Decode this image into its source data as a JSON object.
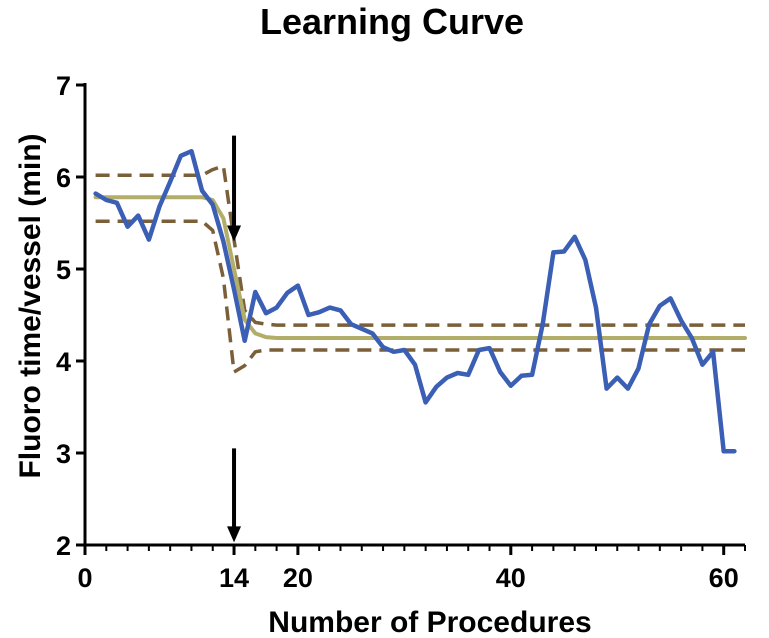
{
  "chart_data": {
    "type": "line",
    "title": "Learning Curve",
    "xlabel": "Number of  Procedures",
    "ylabel": "Fluoro time/vessel (min)",
    "xlim": [
      0,
      62
    ],
    "ylim": [
      2,
      7
    ],
    "x_ticks": [
      {
        "value": 0,
        "label": "0"
      },
      {
        "value": 14,
        "label": "14"
      },
      {
        "value": 20,
        "label": "20"
      },
      {
        "value": 40,
        "label": "40"
      },
      {
        "value": 60,
        "label": "60"
      }
    ],
    "x_minor_ticks": [
      2,
      4,
      6,
      8,
      10,
      12,
      16,
      18,
      22,
      24,
      26,
      28,
      30,
      32,
      34,
      36,
      38,
      42,
      44,
      46,
      48,
      50,
      52,
      54,
      56,
      58,
      62
    ],
    "y_ticks": [
      {
        "value": 2,
        "label": "2"
      },
      {
        "value": 3,
        "label": "3"
      },
      {
        "value": 4,
        "label": "4"
      },
      {
        "value": 5,
        "label": "5"
      },
      {
        "value": 6,
        "label": "6"
      },
      {
        "value": 7,
        "label": "7"
      }
    ],
    "breakpoint_x": 14,
    "series": [
      {
        "role": "observed",
        "color": "#3b5fb5",
        "x": [
          1,
          2,
          3,
          4,
          5,
          6,
          7,
          8,
          9,
          10,
          11,
          12,
          13,
          14,
          15,
          16,
          17,
          18,
          19,
          20,
          21,
          22,
          23,
          24,
          25,
          26,
          27,
          28,
          29,
          30,
          31,
          32,
          33,
          34,
          35,
          36,
          37,
          38,
          39,
          40,
          41,
          42,
          43,
          44,
          45,
          46,
          47,
          48,
          49,
          50,
          51,
          52,
          53,
          54,
          55,
          56,
          57,
          58,
          59,
          60,
          61
        ],
        "values": [
          5.82,
          5.75,
          5.72,
          5.46,
          5.58,
          5.32,
          5.68,
          5.95,
          6.23,
          6.28,
          5.85,
          5.7,
          5.3,
          4.78,
          4.22,
          4.75,
          4.52,
          4.58,
          4.74,
          4.82,
          4.5,
          4.53,
          4.58,
          4.55,
          4.4,
          4.35,
          4.3,
          4.15,
          4.1,
          4.12,
          3.96,
          3.55,
          3.72,
          3.82,
          3.87,
          3.85,
          4.12,
          4.14,
          3.88,
          3.73,
          3.84,
          3.85,
          4.4,
          5.18,
          5.19,
          5.35,
          5.1,
          4.58,
          3.7,
          3.82,
          3.7,
          3.92,
          4.4,
          4.6,
          4.68,
          4.44,
          4.25,
          3.96,
          4.1,
          3.02,
          3.02
        ]
      },
      {
        "role": "fit",
        "color": "#b3ad6a",
        "x": [
          1,
          11,
          12,
          13,
          14,
          15,
          16,
          17,
          18,
          62
        ],
        "values": [
          5.78,
          5.78,
          5.75,
          5.55,
          5.0,
          4.45,
          4.3,
          4.26,
          4.25,
          4.25
        ]
      },
      {
        "role": "upper-band",
        "color": "#7a5f38",
        "x": [
          1,
          11,
          12,
          13,
          14,
          15,
          16,
          17,
          18,
          62
        ],
        "values": [
          6.02,
          6.02,
          6.08,
          6.12,
          5.32,
          4.55,
          4.42,
          4.4,
          4.39,
          4.39
        ]
      },
      {
        "role": "lower-band",
        "color": "#7a5f38",
        "x": [
          1,
          11,
          12,
          13,
          14,
          15,
          16,
          17,
          18,
          62
        ],
        "values": [
          5.52,
          5.52,
          5.42,
          4.9,
          3.88,
          3.95,
          4.1,
          4.12,
          4.12,
          4.12
        ]
      }
    ],
    "arrows": [
      {
        "name": "upper-arrow",
        "x": 14,
        "from_y": 6.45,
        "to_y": 5.32
      },
      {
        "name": "lower-arrow",
        "x": 14,
        "from_y": 3.05,
        "to_y": 2.05
      }
    ]
  }
}
